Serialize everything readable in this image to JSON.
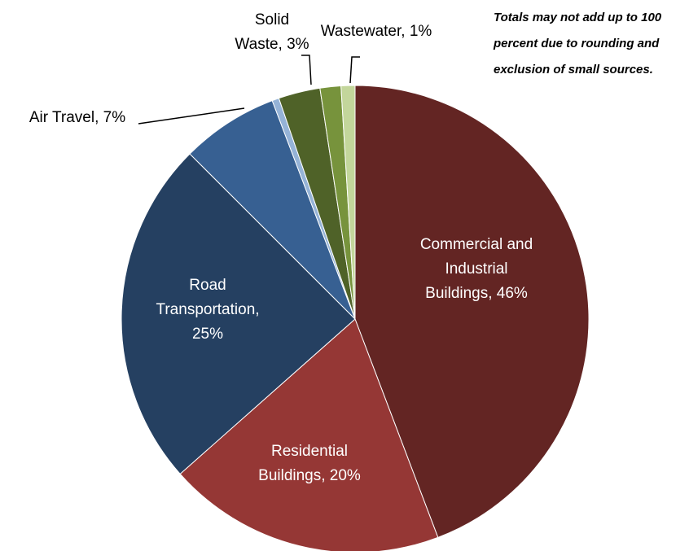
{
  "chart_data": {
    "type": "pie",
    "annotation": "Totals may not add up to 100 percent due to rounding and exclusion of small sources.",
    "categories": [
      "Commercial and Industrial Buildings, 46%",
      "Residential Buildings, 20%",
      "Road Transportation, 25%",
      "Air Travel, 7%",
      null,
      "Solid Waste, 3%",
      null,
      "Wastewater, 1%"
    ],
    "values": [
      46,
      20,
      25,
      7,
      0.5,
      3,
      1.5,
      1
    ],
    "colors": [
      "#632523",
      "#953735",
      "#254061",
      "#376092",
      "#95b3d7",
      "#4f6228",
      "#77933c",
      "#c3d69b"
    ]
  }
}
